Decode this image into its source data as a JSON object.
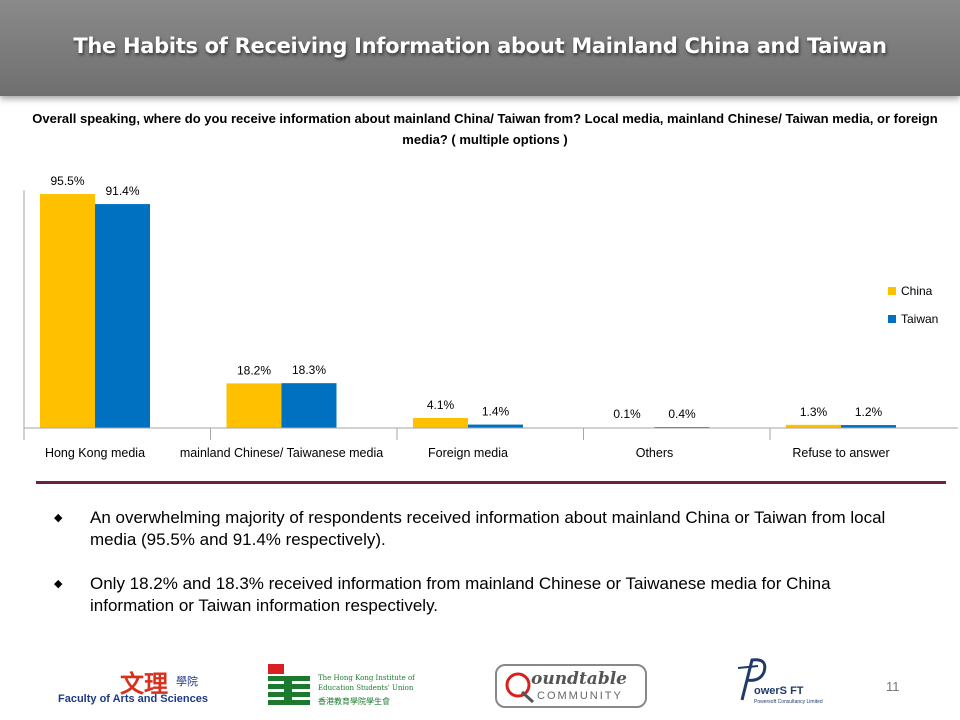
{
  "slide": {
    "title": "The Habits of Receiving Information about Mainland China and Taiwan",
    "question": "Overall speaking, where do you receive information about mainland China/ Taiwan from? Local media, mainland Chinese/ Taiwan media, or foreign media? ( multiple options )",
    "bullets": [
      "An overwhelming majority of respondents received information about mainland China or Taiwan from local media (95.5% and 91.4% respectively).",
      "Only 18.2% and 18.3% received information from mainland Chinese or Taiwanese media for China information or Taiwan information respectively."
    ],
    "bullet_symbol": "◆",
    "page_number": "11"
  },
  "colors": {
    "china": "#FFC000",
    "taiwan": "#0070C0",
    "divider": "#6B1F4A",
    "title_bar": "#7F7F7F"
  },
  "chart_data": {
    "type": "bar",
    "categories": [
      "Hong Kong media",
      "mainland Chinese/ Taiwanese media",
      "Foreign media",
      "Others",
      "Refuse to answer"
    ],
    "series": [
      {
        "name": "China",
        "values": [
          95.5,
          18.2,
          4.1,
          0.1,
          1.3
        ],
        "labels": [
          "95.5%",
          "18.2%",
          "4.1%",
          "0.1%",
          "1.3%"
        ]
      },
      {
        "name": "Taiwan",
        "values": [
          91.4,
          18.3,
          1.4,
          0.4,
          1.2
        ],
        "labels": [
          "91.4%",
          "18.3%",
          "1.4%",
          "0.4%",
          "1.2%"
        ]
      }
    ],
    "ylim": [
      0,
      100
    ],
    "grid": false,
    "legend": "right"
  },
  "logos": {
    "faculty": {
      "chinese": "文理",
      "chinese_small": "學院",
      "english": "Faculty of Arts and Sciences"
    },
    "institute": {
      "line1": "The Hong Kong Institute of",
      "line2": "Education Students' Union",
      "chinese": "香港教育學院學生會"
    },
    "roundtable": {
      "top": "oundtable",
      "bottom": "COMMUNITY"
    },
    "powersoft": {
      "name": "owerS FT",
      "sub": "Powersoft Consultancy Limited"
    }
  }
}
